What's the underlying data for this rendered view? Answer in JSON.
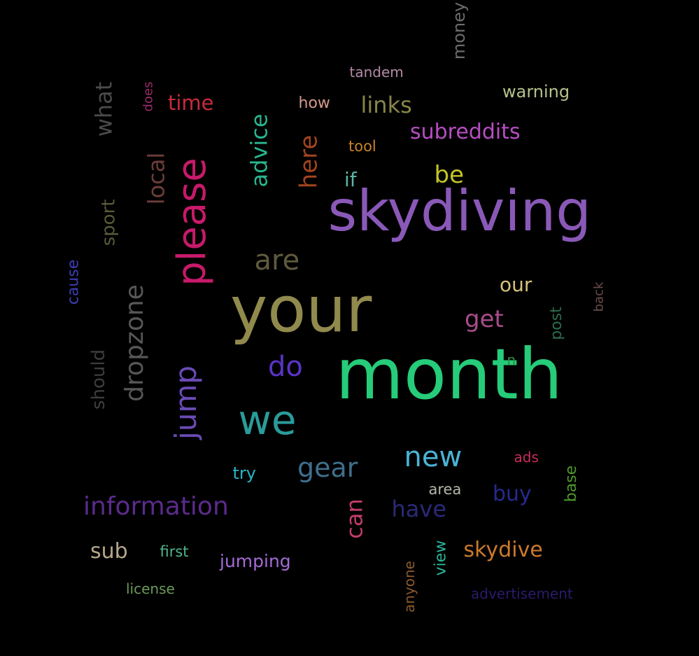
{
  "words": [
    {
      "text": "skydiving",
      "color": "#8a59b8",
      "rot": 0
    },
    {
      "text": "your",
      "color": "#918a4d",
      "rot": 0
    },
    {
      "text": "month",
      "color": "#26cc79",
      "rot": 0
    },
    {
      "text": "we",
      "color": "#2a9b9b",
      "rot": 0
    },
    {
      "text": "please",
      "color": "#c71a6a",
      "rot": -90
    },
    {
      "text": "are",
      "color": "#5f5a3e",
      "rot": 0
    },
    {
      "text": "do",
      "color": "#5a34c7",
      "rot": 0
    },
    {
      "text": "jump",
      "color": "#6a4bb5",
      "rot": -90
    },
    {
      "text": "dropzone",
      "color": "#575757",
      "rot": -90
    },
    {
      "text": "information",
      "color": "#5b2b8c",
      "rot": 0
    },
    {
      "text": "new",
      "color": "#4ab3d6",
      "rot": 0
    },
    {
      "text": "gear",
      "color": "#3e6f8c",
      "rot": 0
    },
    {
      "text": "links",
      "color": "#88854a",
      "rot": 0
    },
    {
      "text": "subreddits",
      "color": "#b84dc4",
      "rot": 0
    },
    {
      "text": "advice",
      "color": "#2ab58f",
      "rot": -90
    },
    {
      "text": "here",
      "color": "#a3441f",
      "rot": -90
    },
    {
      "text": "local",
      "color": "#6b3d3a",
      "rot": -90
    },
    {
      "text": "what",
      "color": "#4a4a4a",
      "rot": -90
    },
    {
      "text": "time",
      "color": "#c72b3a",
      "rot": 0
    },
    {
      "text": "be",
      "color": "#c4c428",
      "rot": 0
    },
    {
      "text": "get",
      "color": "#a84c8a",
      "rot": 0
    },
    {
      "text": "our",
      "color": "#d6c27a",
      "rot": 0
    },
    {
      "text": "have",
      "color": "#2a2a78",
      "rot": 0
    },
    {
      "text": "can",
      "color": "#c23d6a",
      "rot": -90
    },
    {
      "text": "skydive",
      "color": "#cc7a2b",
      "rot": 0
    },
    {
      "text": "buy",
      "color": "#262a8f",
      "rot": 0
    },
    {
      "text": "sub",
      "color": "#b5a88a",
      "rot": 0
    },
    {
      "text": "jumping",
      "color": "#a26bd6",
      "rot": 0
    },
    {
      "text": "warning",
      "color": "#b5c28a",
      "rot": 0
    },
    {
      "text": "sport",
      "color": "#5a5a3a",
      "rot": -90
    },
    {
      "text": "should",
      "color": "#3d3d3d",
      "rot": -90
    },
    {
      "text": "money",
      "color": "#6b6b6b",
      "rot": -90
    },
    {
      "text": "tandem",
      "color": "#b58aa8",
      "rot": 0
    },
    {
      "text": "how",
      "color": "#d69a8a",
      "rot": 0
    },
    {
      "text": "tool",
      "color": "#c7822b",
      "rot": 0
    },
    {
      "text": "if",
      "color": "#5ab5a8",
      "rot": 0
    },
    {
      "text": "post",
      "color": "#2b6b4d",
      "rot": -90
    },
    {
      "text": "back",
      "color": "#6b4d4d",
      "rot": -90
    },
    {
      "text": "cause",
      "color": "#3d3db5",
      "rot": -90
    },
    {
      "text": "does",
      "color": "#9a2b6b",
      "rot": -90
    },
    {
      "text": "try",
      "color": "#2ab5c2",
      "rot": 0
    },
    {
      "text": "area",
      "color": "#b5b5a8",
      "rot": 0
    },
    {
      "text": "ads",
      "color": "#c72b5a",
      "rot": 0
    },
    {
      "text": "base",
      "color": "#4d9a2b",
      "rot": -90
    },
    {
      "text": "first",
      "color": "#4db58a",
      "rot": 0
    },
    {
      "text": "license",
      "color": "#6b9a5a",
      "rot": 0
    },
    {
      "text": "view",
      "color": "#2ab59a",
      "rot": -90
    },
    {
      "text": "anyone",
      "color": "#8a5a2b",
      "rot": -90
    },
    {
      "text": "advertisement",
      "color": "#2b1a6b",
      "rot": 0
    },
    {
      "text": "n",
      "color": "#2b8a3d",
      "rot": 0
    }
  ]
}
